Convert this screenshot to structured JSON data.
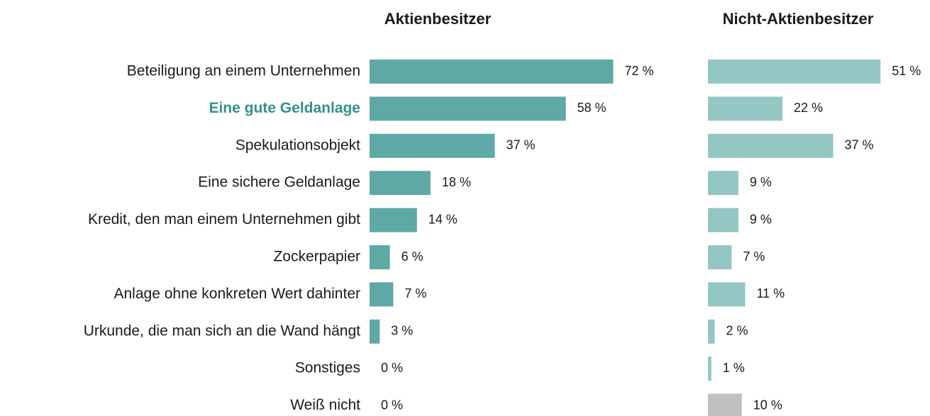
{
  "chart_data": {
    "type": "bar",
    "orientation": "horizontal",
    "categories": [
      "Beteiligung an einem Unternehmen",
      "Eine gute Geldanlage",
      "Spekulationsobjekt",
      "Eine sichere Geldanlage",
      "Kredit, den man einem Unternehmen gibt",
      "Zockerpapier",
      "Anlage ohne konkreten Wert dahinter",
      "Urkunde, die man sich an die Wand hängt",
      "Sonstiges",
      "Weiß nicht"
    ],
    "highlight_index": 1,
    "highlight_color": "#35918a",
    "series": [
      {
        "name": "Aktienbesitzer",
        "color": "#5ea8a5",
        "values": [
          72,
          58,
          37,
          18,
          14,
          6,
          7,
          3,
          0,
          0
        ],
        "value_labels": [
          "72 %",
          "58 %",
          "37 %",
          "18 %",
          "14 %",
          "6 %",
          "7 %",
          "3 %",
          "0 %",
          "0 %"
        ]
      },
      {
        "name": "Nicht-Aktienbesitzer",
        "color": "#94c6c3",
        "colors": [
          "#94c6c3",
          "#94c6c3",
          "#94c6c3",
          "#94c6c3",
          "#94c6c3",
          "#94c6c3",
          "#94c6c3",
          "#94c6c3",
          "#94c6c3",
          "#c0c0c0"
        ],
        "values": [
          51,
          22,
          37,
          9,
          9,
          7,
          11,
          2,
          1,
          10
        ],
        "value_labels": [
          "51 %",
          "22 %",
          "37 %",
          "9 %",
          "9 %",
          "7 %",
          "11 %",
          "2 %",
          "1 %",
          "10 %"
        ]
      }
    ]
  }
}
